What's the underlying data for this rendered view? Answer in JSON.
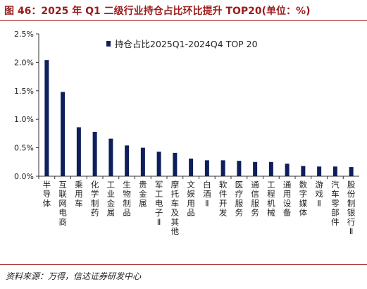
{
  "header": {
    "title": "图 46：2025 年 Q1 二级行业持仓占比环比提升 TOP20(单位：%)"
  },
  "footer": {
    "source": "资料来源：万得，信达证券研发中心"
  },
  "colors": {
    "bar": "#0f1f5c",
    "title": "#9b1c1c",
    "axis": "#333333"
  },
  "chart_data": {
    "type": "bar",
    "title": "",
    "xlabel": "",
    "ylabel": "",
    "categories": [
      "半导体",
      "互联网电商",
      "乘用车",
      "化学制药",
      "工业金属",
      "生物制品",
      "贵金属",
      "军工电子Ⅱ",
      "摩托车及其他",
      "文娱用品",
      "白酒Ⅱ",
      "软件开发",
      "医疗服务",
      "通信服务",
      "工程机械",
      "通用设备",
      "数字媒体",
      "游戏Ⅱ",
      "汽车零部件",
      "股份制银行Ⅱ"
    ],
    "series": [
      {
        "name": "持仓占比2025Q1-2024Q4 TOP 20",
        "values": [
          2.04,
          1.48,
          0.86,
          0.78,
          0.66,
          0.54,
          0.5,
          0.43,
          0.41,
          0.31,
          0.28,
          0.28,
          0.27,
          0.25,
          0.25,
          0.22,
          0.18,
          0.17,
          0.17,
          0.16
        ]
      }
    ],
    "ylim": [
      0,
      2.5
    ],
    "yticks": [
      "0.0%",
      "0.5%",
      "1.0%",
      "1.5%",
      "2.0%",
      "2.5%"
    ],
    "ytick_values": [
      0,
      0.5,
      1.0,
      1.5,
      2.0,
      2.5
    ],
    "grid": false,
    "legend_position": "top-left"
  }
}
